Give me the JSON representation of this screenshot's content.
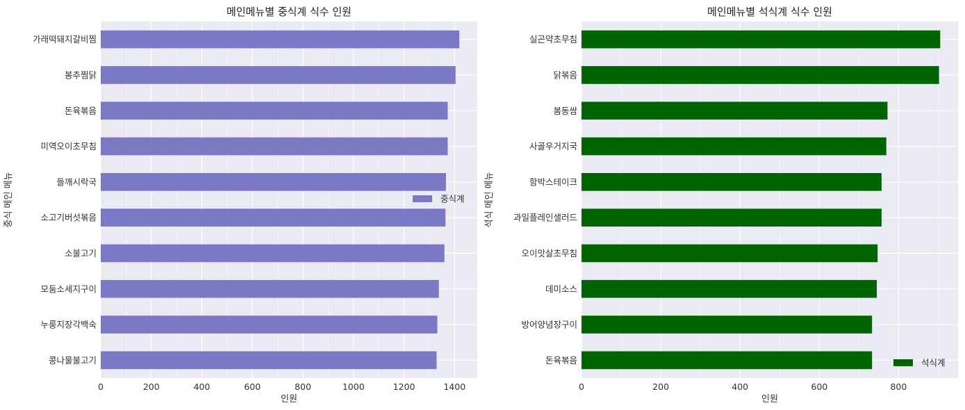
{
  "chart_data": [
    {
      "type": "bar",
      "orientation": "horizontal",
      "title": "메인메뉴별 중식계 식수 인원",
      "xlabel": "인원",
      "ylabel": "중식 메인 메뉴",
      "categories": [
        "가래떡돼지갈비찜",
        "봉추찜닭",
        "돈육볶음",
        "미역오이초무침",
        "들깨시락국",
        "소고기버섯볶음",
        "소불고기",
        "모둠소세지구이",
        "누룽지장각백숙",
        "콩나물불고기"
      ],
      "series": [
        {
          "name": "중식계",
          "color": "#7b78c4",
          "values": [
            1419,
            1404,
            1373,
            1373,
            1366,
            1364,
            1360,
            1338,
            1332,
            1329
          ]
        }
      ],
      "xlim": [
        0,
        1490
      ],
      "xticks": [
        0,
        200,
        400,
        600,
        800,
        1000,
        1200,
        1400
      ],
      "grid": true,
      "legend_position": "center-right",
      "background": "#eaeaf2"
    },
    {
      "type": "bar",
      "orientation": "horizontal",
      "title": "메인메뉴별 석식계 식수 인원",
      "xlabel": "인원",
      "ylabel": "석식 메인 메뉴",
      "categories": [
        "실곤약초무침",
        "닭볶음",
        "봄동쌈",
        "사골우거지국",
        "함박스테이크",
        "과일플레인샐러드",
        "오이맛살초무침",
        "데미소스",
        "방어양념장구이",
        "돈육볶음"
      ],
      "series": [
        {
          "name": "석식계",
          "color": "#006400",
          "values": [
            905,
            902,
            772,
            769,
            757,
            757,
            747,
            745,
            733,
            733
          ]
        }
      ],
      "xlim": [
        0,
        950
      ],
      "xticks": [
        0,
        200,
        400,
        600,
        800
      ],
      "grid": true,
      "legend_position": "lower-right",
      "background": "#eaeaf2"
    }
  ]
}
